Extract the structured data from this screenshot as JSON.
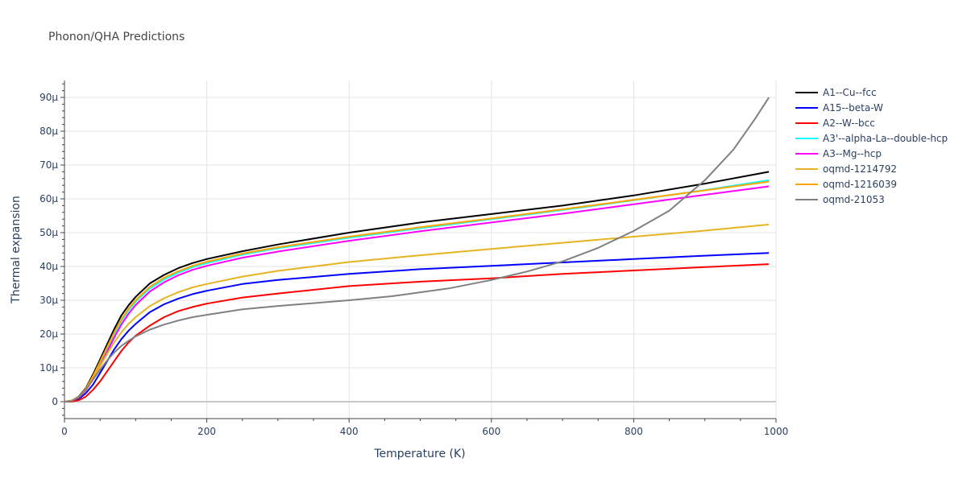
{
  "chart_data": {
    "type": "line",
    "title": "Phonon/QHA Predictions",
    "xlabel": "Temperature (K)",
    "ylabel": "Thermal expansion",
    "xlim": [
      0,
      1000
    ],
    "ylim": [
      -5,
      95
    ],
    "x_ticks": [
      {
        "value": 0,
        "label": "0"
      },
      {
        "value": 200,
        "label": "200"
      },
      {
        "value": 400,
        "label": "400"
      },
      {
        "value": 600,
        "label": "600"
      },
      {
        "value": 800,
        "label": "800"
      },
      {
        "value": 1000,
        "label": "1000"
      }
    ],
    "y_ticks": [
      {
        "value": 0,
        "label": "0"
      },
      {
        "value": 10,
        "label": "10μ"
      },
      {
        "value": 20,
        "label": "20μ"
      },
      {
        "value": 30,
        "label": "30μ"
      },
      {
        "value": 40,
        "label": "40μ"
      },
      {
        "value": 50,
        "label": "50μ"
      },
      {
        "value": 60,
        "label": "60μ"
      },
      {
        "value": 70,
        "label": "70μ"
      },
      {
        "value": 80,
        "label": "80μ"
      },
      {
        "value": 90,
        "label": "90μ"
      }
    ],
    "grid": true,
    "legend_position": "right",
    "series": [
      {
        "name": "A1--Cu--fcc",
        "color": "#000000",
        "x": [
          0,
          10,
          20,
          30,
          40,
          50,
          60,
          70,
          80,
          90,
          100,
          120,
          140,
          160,
          180,
          200,
          250,
          300,
          400,
          500,
          600,
          700,
          800,
          900,
          990
        ],
        "y": [
          0,
          0.3,
          1.5,
          4,
          8,
          12.5,
          17,
          21.5,
          25.5,
          28.5,
          31,
          35,
          37.5,
          39.5,
          41,
          42.2,
          44.5,
          46.5,
          50,
          53,
          55.5,
          58,
          61,
          64.5,
          68
        ]
      },
      {
        "name": "A15--beta-W",
        "color": "#0000ff",
        "x": [
          0,
          10,
          20,
          30,
          40,
          50,
          60,
          70,
          80,
          90,
          100,
          120,
          140,
          160,
          180,
          200,
          250,
          300,
          400,
          500,
          600,
          700,
          800,
          900,
          990
        ],
        "y": [
          0,
          0.1,
          0.8,
          2.5,
          5,
          8.5,
          12,
          15.5,
          18.5,
          21,
          23,
          26.5,
          28.8,
          30.5,
          31.8,
          32.8,
          34.8,
          36,
          37.8,
          39.2,
          40.2,
          41.2,
          42.2,
          43.2,
          44
        ]
      },
      {
        "name": "A2--W--bcc",
        "color": "#ff0000",
        "x": [
          0,
          10,
          20,
          30,
          40,
          50,
          60,
          70,
          80,
          90,
          100,
          120,
          140,
          160,
          180,
          200,
          250,
          300,
          400,
          500,
          600,
          700,
          800,
          900,
          990
        ],
        "y": [
          0,
          0.05,
          0.4,
          1.5,
          3.5,
          6,
          9,
          12,
          15,
          17.5,
          19.5,
          22.5,
          25,
          26.8,
          28,
          29,
          30.8,
          32,
          34.2,
          35.5,
          36.5,
          37.8,
          38.8,
          39.8,
          40.7
        ]
      },
      {
        "name": "A3'--alpha-La--double-hcp",
        "color": "#00ffff",
        "x": [
          0,
          10,
          20,
          30,
          40,
          50,
          60,
          70,
          80,
          90,
          100,
          120,
          140,
          160,
          180,
          200,
          250,
          300,
          400,
          500,
          600,
          700,
          800,
          900,
          990
        ],
        "y": [
          0,
          0.3,
          1.3,
          3.6,
          7.2,
          11.4,
          15.8,
          20,
          23.8,
          27,
          29.6,
          33.5,
          36.2,
          38.2,
          39.8,
          41,
          43.5,
          45.4,
          48.5,
          51.3,
          54,
          56.7,
          59.6,
          62.6,
          65.5
        ]
      },
      {
        "name": "A3--Mg--hcp",
        "color": "#ff00ff",
        "x": [
          0,
          10,
          20,
          30,
          40,
          50,
          60,
          70,
          80,
          90,
          100,
          120,
          140,
          160,
          180,
          200,
          250,
          300,
          400,
          500,
          600,
          700,
          800,
          900,
          990
        ],
        "y": [
          0,
          0.3,
          1.2,
          3.3,
          6.6,
          10.6,
          14.8,
          19,
          22.8,
          26,
          28.6,
          32.6,
          35.3,
          37.4,
          39,
          40.2,
          42.6,
          44.4,
          47.6,
          50.4,
          53,
          55.6,
          58.4,
          61.2,
          63.7
        ]
      },
      {
        "name": "oqmd-1214792",
        "color": "#e6b422",
        "x": [
          0,
          10,
          20,
          30,
          40,
          50,
          60,
          70,
          80,
          90,
          100,
          120,
          140,
          160,
          180,
          200,
          250,
          300,
          400,
          500,
          600,
          700,
          800,
          900,
          990
        ],
        "y": [
          0,
          0.3,
          1.3,
          3.5,
          6.8,
          10.5,
          14.2,
          17.6,
          20.5,
          23,
          25,
          28.3,
          30.6,
          32.4,
          33.8,
          34.8,
          37,
          38.7,
          41.3,
          43.3,
          45.2,
          47,
          48.8,
          50.6,
          52.4
        ]
      },
      {
        "name": "oqmd-1216039",
        "color": "#ffa500",
        "x": [
          0,
          10,
          20,
          30,
          40,
          50,
          60,
          70,
          80,
          90,
          100,
          120,
          140,
          160,
          180,
          200,
          250,
          300,
          400,
          500,
          600,
          700,
          800,
          900,
          990
        ],
        "y": [
          0,
          0.3,
          1.4,
          3.8,
          7.5,
          11.8,
          16.2,
          20.5,
          24.3,
          27.5,
          30,
          34,
          36.7,
          38.6,
          40.2,
          41.4,
          43.8,
          45.7,
          48.8,
          51.6,
          54.2,
          56.9,
          59.7,
          62.5,
          65.1
        ]
      },
      {
        "name": "oqmd-21053",
        "color": "#808080",
        "x": [
          0,
          10,
          20,
          30,
          40,
          50,
          60,
          70,
          80,
          90,
          100,
          120,
          140,
          160,
          180,
          200,
          250,
          300,
          400,
          460,
          540,
          600,
          650,
          700,
          750,
          800,
          850,
          900,
          940,
          970,
          990
        ],
        "y": [
          0,
          0.2,
          1.3,
          3.5,
          6.5,
          9.5,
          12.2,
          14.6,
          16.5,
          18,
          19.3,
          21.3,
          22.8,
          24,
          25,
          25.7,
          27.3,
          28.3,
          30,
          31.2,
          33.5,
          36,
          38.5,
          41.5,
          45.5,
          50.5,
          56.5,
          65.5,
          74.5,
          83.5,
          90
        ]
      }
    ]
  }
}
